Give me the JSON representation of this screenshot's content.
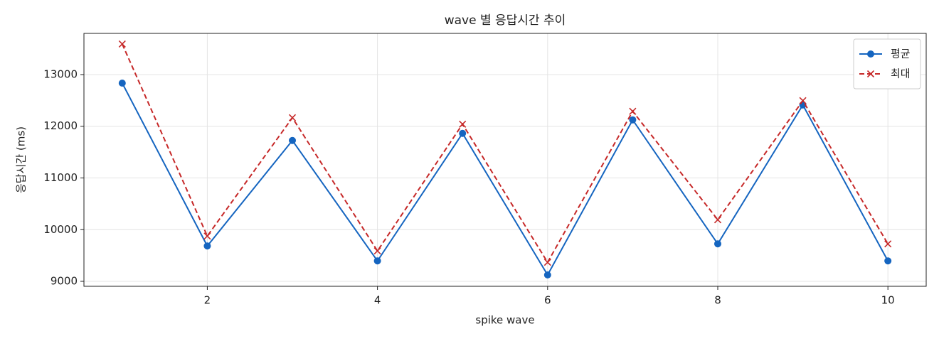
{
  "chart_data": {
    "type": "line",
    "title": "wave 별 응답시간 추이",
    "x_label": "spike wave",
    "y_label": "응답시간 (ms)",
    "x": [
      1,
      2,
      3,
      4,
      5,
      6,
      7,
      8,
      9,
      10
    ],
    "series": [
      {
        "name": "평균",
        "color": "#1565c0",
        "marker": "circle",
        "dash": false,
        "values": [
          12835,
          9684,
          11725,
          9395,
          11863,
          9124,
          12124,
          9725,
          12412,
          9395
        ]
      },
      {
        "name": "최대",
        "color": "#c62828",
        "marker": "x",
        "dash": true,
        "values": [
          13591,
          9876,
          12165,
          9588,
          12041,
          9368,
          12289,
          10192,
          12495,
          9725
        ]
      }
    ],
    "xlim": [
      0.55,
      10.45
    ],
    "ylim": [
      8904,
      13797
    ],
    "xticks": [
      2,
      4,
      6,
      8,
      10
    ],
    "yticks": [
      9000,
      10000,
      11000,
      12000,
      13000
    ],
    "grid": true,
    "legend": "upper right"
  }
}
